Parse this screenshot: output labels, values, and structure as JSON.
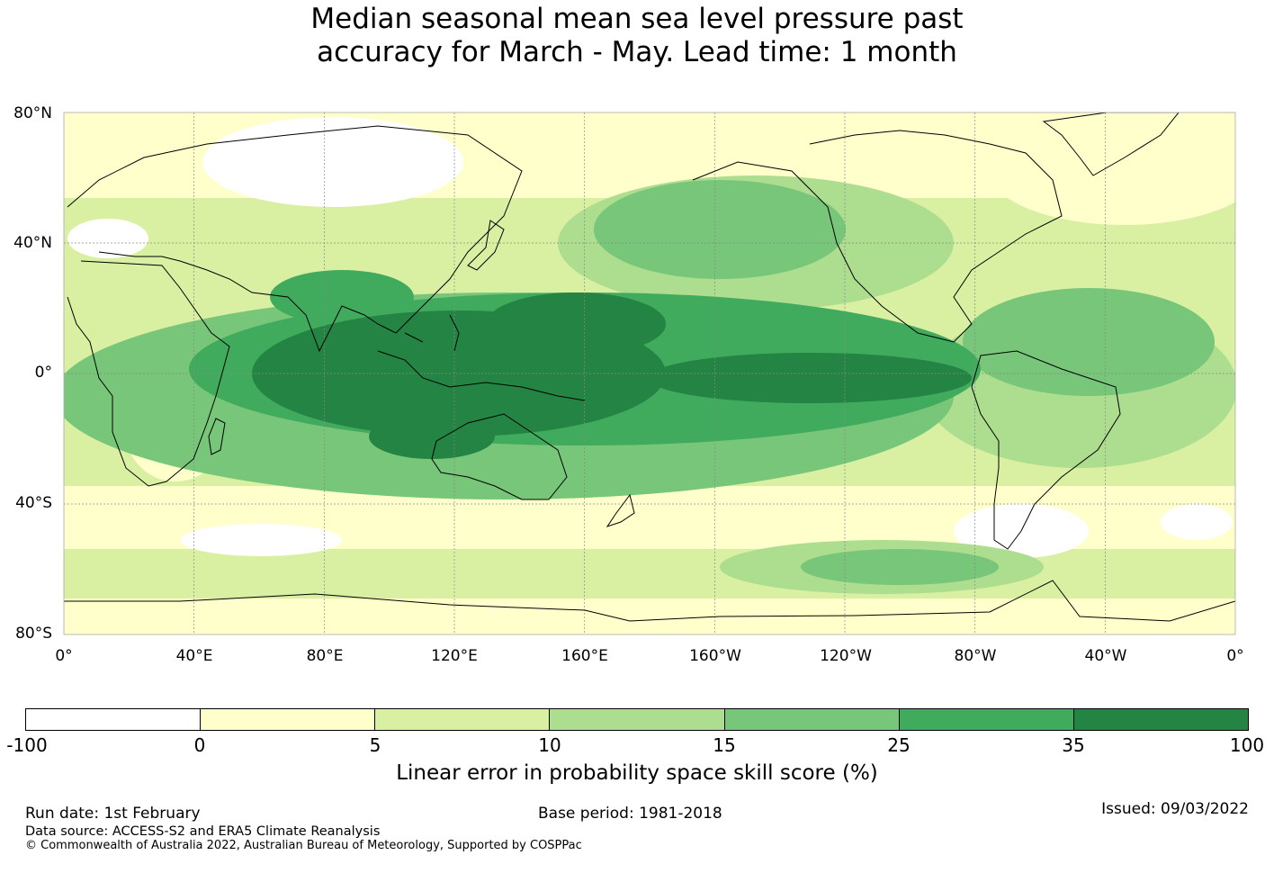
{
  "title": {
    "line1": "Median seasonal mean sea level pressure past",
    "line2": "accuracy for March - May. Lead time: 1 month"
  },
  "map": {
    "lat_labels": [
      "80°N",
      "40°N",
      "0°",
      "40°S",
      "80°S"
    ],
    "lon_labels": [
      "0°",
      "40°E",
      "80°E",
      "120°E",
      "160°E",
      "160°W",
      "120°W",
      "80°W",
      "40°W",
      "0°"
    ],
    "colors": {
      "ocean_base": "#d9f0a3",
      "coast": "#000000",
      "grid": "#888888"
    }
  },
  "colorbar": {
    "ticks": [
      "-100",
      "0",
      "5",
      "10",
      "15",
      "25",
      "35",
      "100"
    ],
    "colors": [
      "#ffffff",
      "#ffffcc",
      "#d9f0a3",
      "#addd8e",
      "#78c679",
      "#41ab5d",
      "#238443"
    ],
    "label": "Linear error in probability space skill score (%)"
  },
  "footer": {
    "run_date": "Run date: 1st February",
    "base_period": "Base period: 1981-2018",
    "issued": "Issued: 09/03/2022",
    "data_source": "Data source: ACCESS-S2 and ERA5 Climate Reanalysis",
    "copyright": "© Commonwealth of Australia 2022, Australian Bureau of Meteorology, Supported by COSPPac"
  }
}
